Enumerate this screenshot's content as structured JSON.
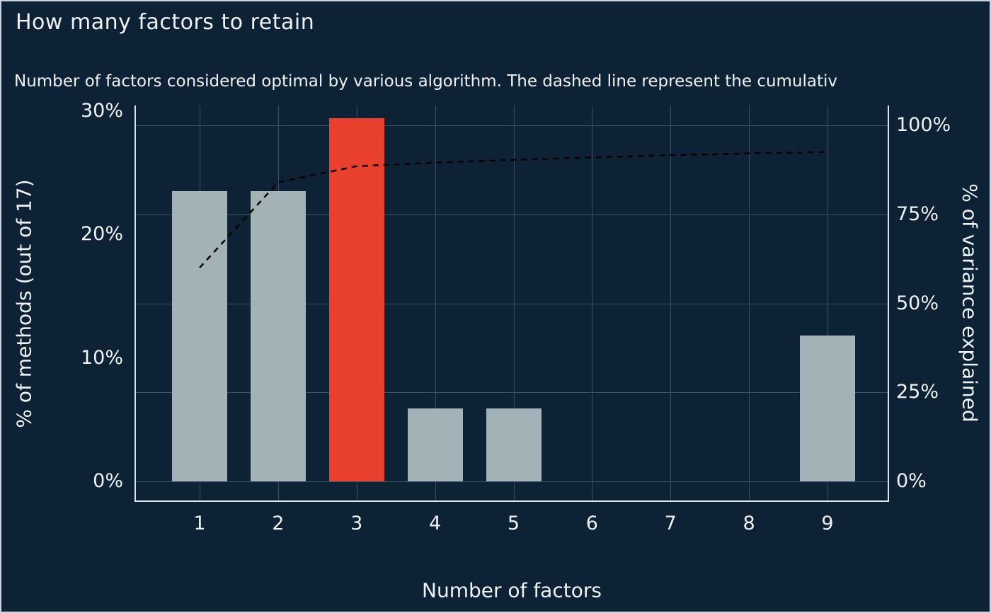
{
  "theme": {
    "background": "#0d2234",
    "border": "#c9d4dc",
    "text": "#edf2f5",
    "axis_line": "#dde5ea"
  },
  "chart_data": {
    "type": "bar",
    "title": "How many factors to retain",
    "subtitle": "Number of factors considered optimal by various algorithm. The dashed line represent the cumulativ",
    "categories": [
      1,
      2,
      3,
      4,
      5,
      6,
      7,
      8,
      9
    ],
    "series": [
      {
        "name": "% of methods (out of 17)",
        "type": "bar",
        "axis": "left",
        "values": [
          23.5,
          23.5,
          29.4,
          5.9,
          5.9,
          0,
          0,
          0,
          11.8
        ]
      },
      {
        "name": "cumulative % of variance explained",
        "type": "line",
        "style": "dashed",
        "axis": "right",
        "values": [
          60,
          84,
          88.5,
          89.5,
          90.3,
          91,
          91.6,
          92.1,
          92.5
        ]
      }
    ],
    "highlight_category": 3,
    "xlabel": "Number of factors",
    "left_axis": {
      "title": "% of methods (out of 17)",
      "min": 0,
      "max": 30,
      "ticks": [
        {
          "value": 0,
          "label": "0%"
        },
        {
          "value": 10,
          "label": "10%"
        },
        {
          "value": 20,
          "label": "20%"
        },
        {
          "value": 30,
          "label": "30%"
        }
      ]
    },
    "right_axis": {
      "title": "% of variance explained",
      "min": 0,
      "max": 100,
      "ticks": [
        {
          "value": 0,
          "label": "0%"
        },
        {
          "value": 25,
          "label": "25%"
        },
        {
          "value": 50,
          "label": "50%"
        },
        {
          "value": 75,
          "label": "75%"
        },
        {
          "value": 100,
          "label": "100%"
        }
      ]
    },
    "grid": true,
    "legend": "none",
    "colors": {
      "bar": "#a2b2b6",
      "highlight": "#e8402c",
      "line": "#000000",
      "grid": "#3c5065"
    }
  }
}
